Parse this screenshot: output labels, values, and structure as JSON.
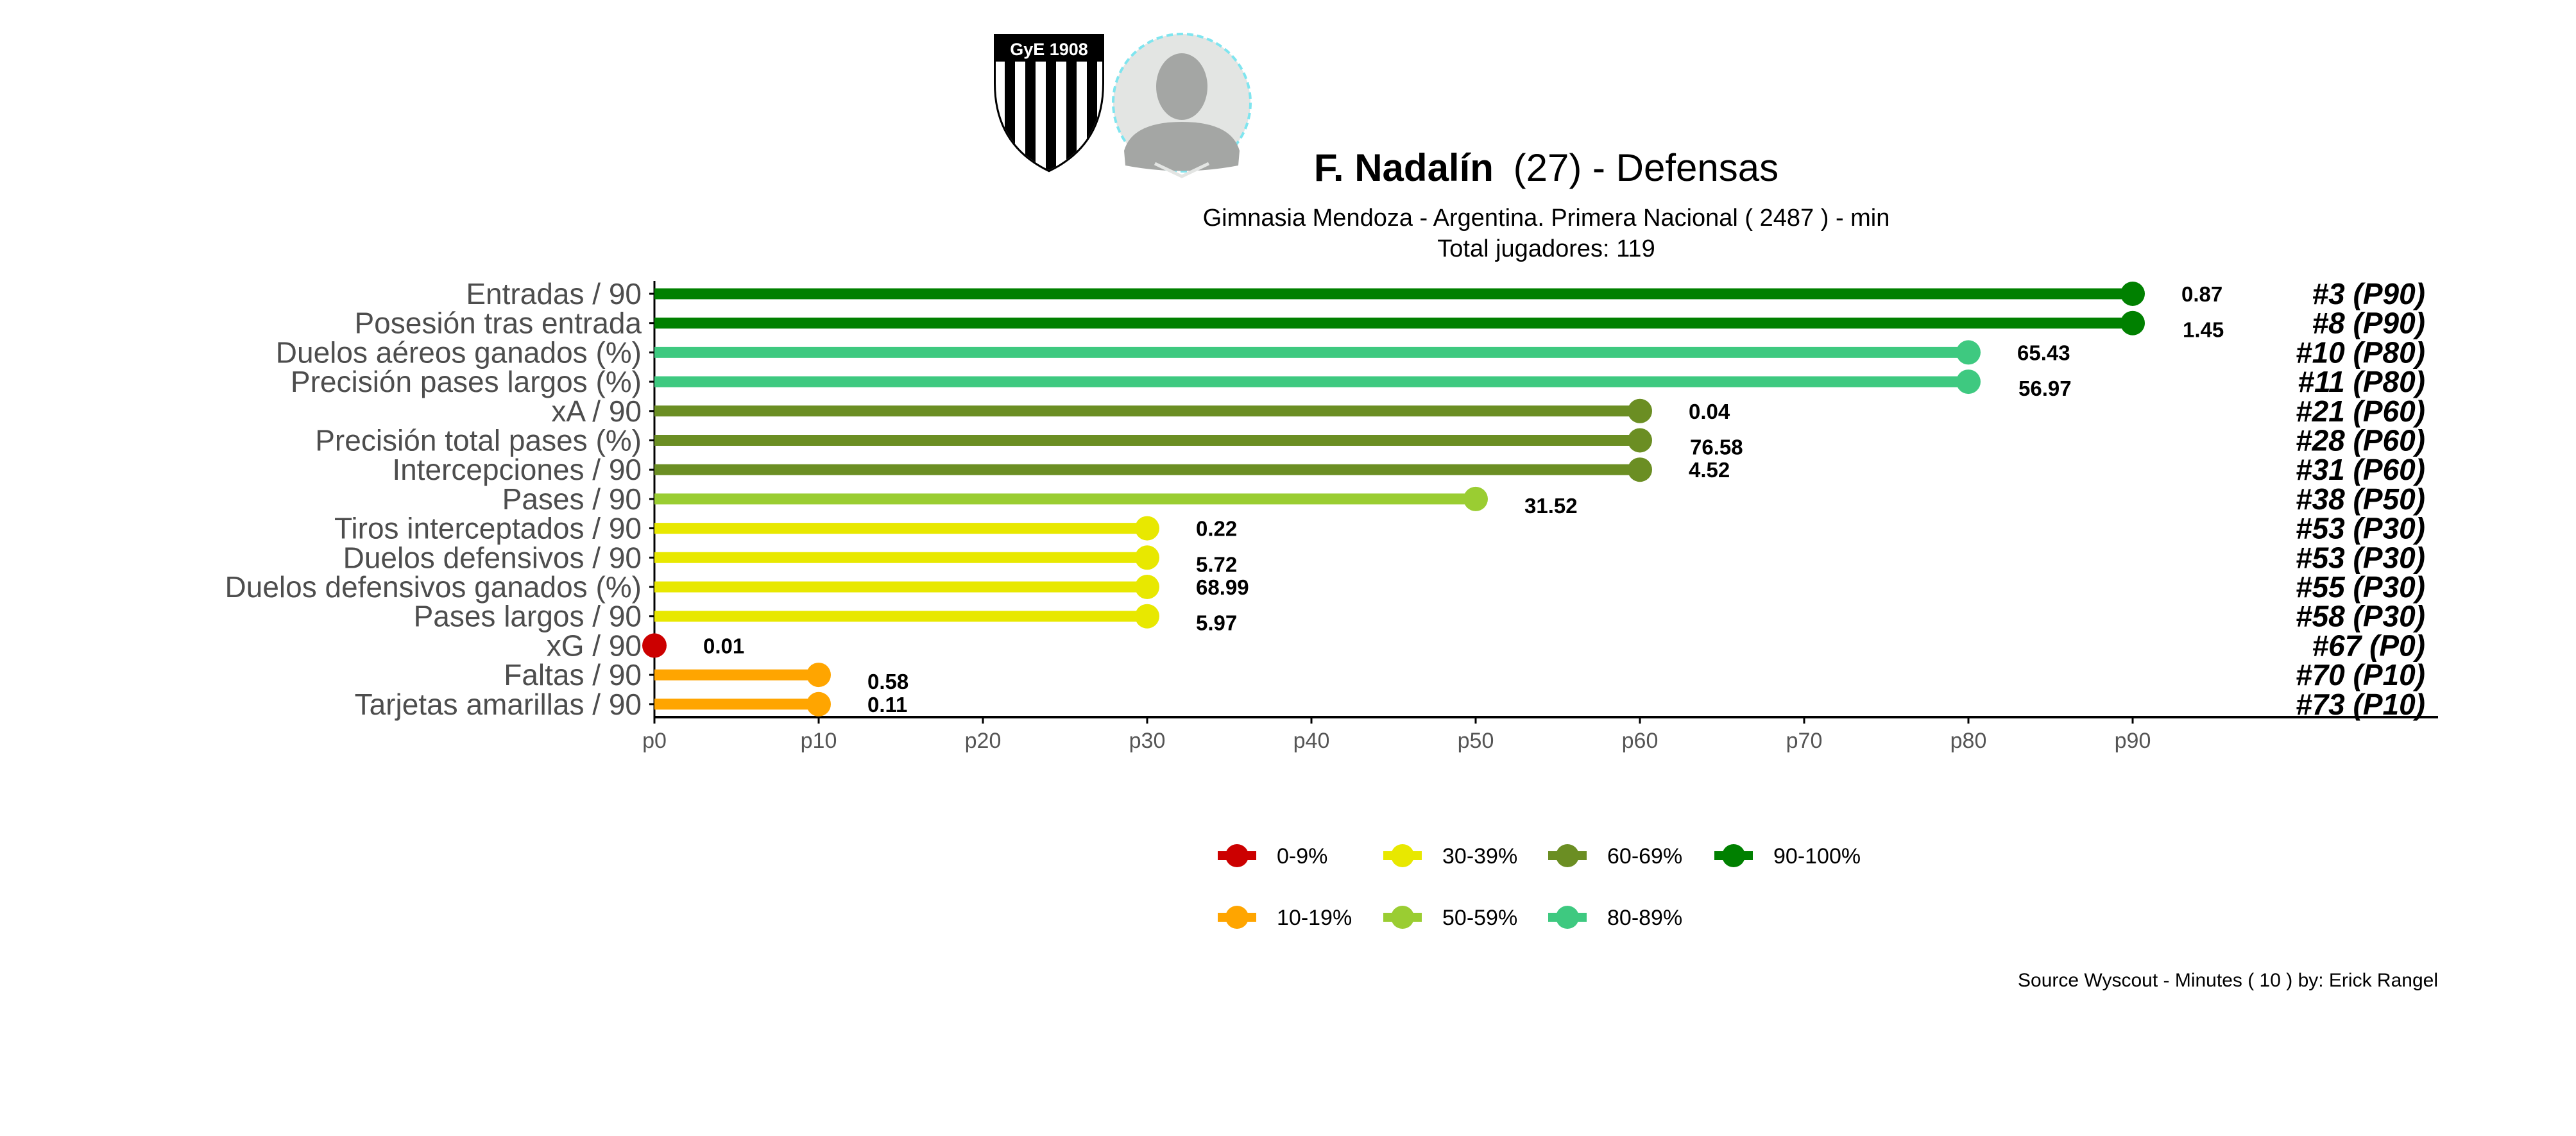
{
  "header": {
    "player_name": "F. Nadalín",
    "player_age": "(27) -  Defensas",
    "club_line": "Gimnasia Mendoza  -  Argentina. Primera Nacional  ( 2487 ) - min",
    "total_line": "Total jugadores:  119",
    "badge_text": "GyE 1908"
  },
  "chart_data": {
    "type": "bar",
    "orientation": "horizontal-lollipop",
    "xlim": [
      0,
      100
    ],
    "x_ticks": [
      "p0",
      "p10",
      "p20",
      "p30",
      "p40",
      "p50",
      "p60",
      "p70",
      "p80",
      "p90"
    ],
    "x_tick_values": [
      0,
      10,
      20,
      30,
      40,
      50,
      60,
      70,
      80,
      90
    ],
    "categories": [
      "Entradas / 90",
      "Posesión tras entrada",
      "Duelos aéreos ganados (%)",
      "Precisión pases largos (%)",
      "xA / 90",
      "Precisión total pases (%)",
      "Intercepciones / 90",
      "Pases / 90",
      "Tiros interceptados / 90",
      "Duelos defensivos / 90",
      "Duelos defensivos ganados (%)",
      "Pases largos / 90",
      "xG / 90",
      "Faltas / 90",
      "Tarjetas amarillas / 90"
    ],
    "percentiles": [
      90,
      90,
      80,
      80,
      60,
      60,
      60,
      50,
      30,
      30,
      30,
      30,
      0,
      10,
      10
    ],
    "values": [
      "0.87",
      "1.45",
      "65.43",
      "56.97",
      "0.04",
      "76.58",
      "4.52",
      "31.52",
      "0.22",
      "5.72",
      "68.99",
      "5.97",
      "0.01",
      "0.58",
      "0.11"
    ],
    "ranks": [
      "#3 (P90)",
      "#8 (P90)",
      "#10 (P80)",
      "#11 (P80)",
      "#21 (P60)",
      "#28 (P60)",
      "#31 (P60)",
      "#38 (P50)",
      "#53 (P30)",
      "#53 (P30)",
      "#55 (P30)",
      "#58 (P30)",
      "#67 (P0)",
      "#70 (P10)",
      "#73 (P10)"
    ],
    "legend": {
      "placement": "bottom",
      "items": [
        {
          "label": "0-9%",
          "color": "#cc0000"
        },
        {
          "label": "30-39%",
          "color": "#e8e800"
        },
        {
          "label": "60-69%",
          "color": "#6b8e23"
        },
        {
          "label": "90-100%",
          "color": "#008000"
        },
        {
          "label": "10-19%",
          "color": "#ffa500"
        },
        {
          "label": "50-59%",
          "color": "#9acd32"
        },
        {
          "label": "80-89%",
          "color": "#3ec980"
        }
      ]
    },
    "bands": [
      {
        "min": 0,
        "color": "#cc0000"
      },
      {
        "min": 10,
        "color": "#ffa500"
      },
      {
        "min": 30,
        "color": "#e8e800"
      },
      {
        "min": 50,
        "color": "#9acd32"
      },
      {
        "min": 60,
        "color": "#6b8e23"
      },
      {
        "min": 80,
        "color": "#3ec980"
      },
      {
        "min": 90,
        "color": "#008000"
      }
    ]
  },
  "footer": {
    "source": "Source Wyscout - Minutes ( 10 ) by: Erick Rangel"
  }
}
